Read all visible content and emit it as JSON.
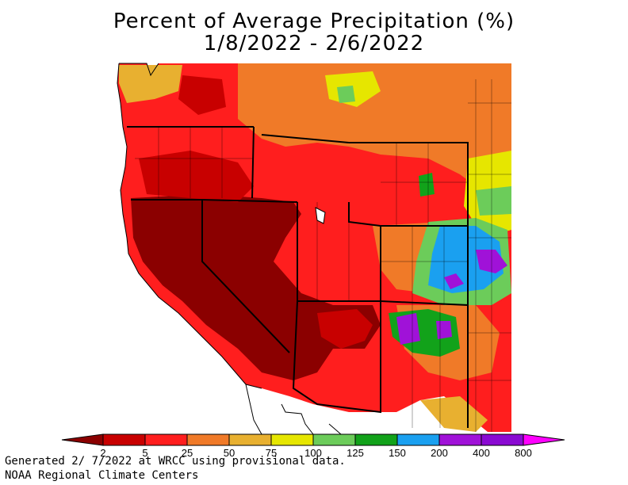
{
  "header": {
    "title": "Percent of Average Precipitation (%)",
    "date_range": "1/8/2022 - 2/6/2022"
  },
  "legend": {
    "breaks": [
      "2",
      "5",
      "25",
      "50",
      "75",
      "100",
      "125",
      "150",
      "200",
      "400",
      "800"
    ],
    "colors": [
      "#8b0000",
      "#c80000",
      "#ff1e1e",
      "#f07a28",
      "#e8b030",
      "#e6e600",
      "#6ccc5a",
      "#12a21a",
      "#1aa0f0",
      "#a012d8",
      "#8a0ad2",
      "#ff00ff"
    ]
  },
  "footer": {
    "line1": "Generated 2/ 7/2022 at WRCC using provisional data.",
    "line2": "NOAA Regional Climate Centers"
  }
}
